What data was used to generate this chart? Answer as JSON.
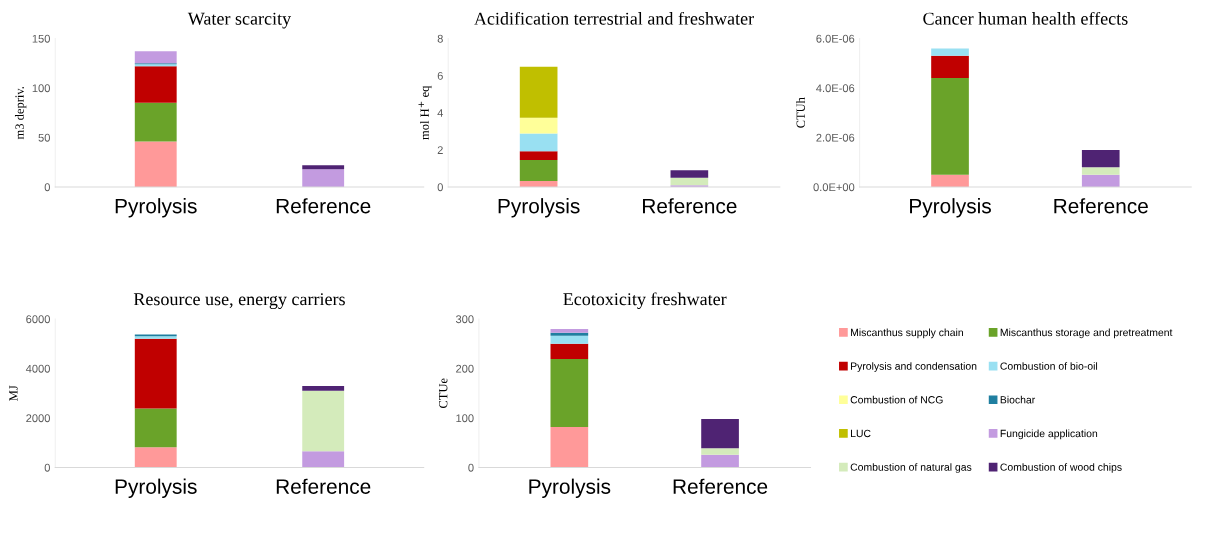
{
  "chart_data": [
    {
      "type": "bar",
      "stacked": true,
      "title": "Water scarcity",
      "ylabel": "m3 depriv.",
      "categories": [
        "Pyrolysis",
        "Reference"
      ],
      "ylim": [
        0,
        150
      ],
      "yticks": [
        0,
        50,
        100,
        150
      ],
      "series": [
        {
          "color": "#ff9999",
          "values": [
            46,
            null
          ]
        },
        {
          "color": "#6aa329",
          "values": [
            39,
            null
          ]
        },
        {
          "color": "#c00000",
          "values": [
            37,
            null
          ]
        },
        {
          "color": "#99e0f2",
          "values": [
            2,
            null
          ]
        },
        {
          "color": "#1f7fa0",
          "values": [
            1,
            null
          ]
        },
        {
          "color": "#c39be0",
          "values": [
            12,
            18
          ]
        },
        {
          "color": "#4f2373",
          "values": [
            null,
            4
          ]
        }
      ]
    },
    {
      "type": "bar",
      "stacked": true,
      "title": "Acidification terrestrial and freshwater",
      "ylabel": "mol H$^{+}$ eq",
      "categories": [
        "Pyrolysis",
        "Reference"
      ],
      "ylim": [
        0,
        8
      ],
      "yticks": [
        0,
        2,
        4,
        6,
        8
      ],
      "series": [
        {
          "color": "#ff9999",
          "values": [
            0.32,
            null
          ]
        },
        {
          "color": "#6aa329",
          "values": [
            1.14,
            null
          ]
        },
        {
          "color": "#c00000",
          "values": [
            0.47,
            null
          ]
        },
        {
          "color": "#99e0f2",
          "values": [
            0.95,
            null
          ]
        },
        {
          "color": "#ffff99",
          "values": [
            0.85,
            null
          ]
        },
        {
          "color": "#c0bf00",
          "values": [
            2.75,
            null
          ]
        },
        {
          "color": "#c39be0",
          "values": [
            null,
            0.1
          ]
        },
        {
          "color": "#d4ebbb",
          "values": [
            null,
            0.4
          ]
        },
        {
          "color": "#4f2373",
          "values": [
            null,
            0.4
          ]
        }
      ]
    },
    {
      "type": "bar",
      "stacked": true,
      "title": "Cancer human health effects",
      "ylabel": "CTUh",
      "categories": [
        "Pyrolysis",
        "Reference"
      ],
      "ylim": [
        0,
        6e-06
      ],
      "yticks": [
        {
          "value": 0,
          "label": "0.0E+00"
        },
        {
          "value": 2e-06,
          "label": "2.0E-06"
        },
        {
          "value": 4e-06,
          "label": "4.0E-06"
        },
        {
          "value": 6e-06,
          "label": "6.0E-06"
        }
      ],
      "series": [
        {
          "color": "#ff9999",
          "values": [
            5e-07,
            null
          ]
        },
        {
          "color": "#6aa329",
          "values": [
            3.9e-06,
            null
          ]
        },
        {
          "color": "#c00000",
          "values": [
            9e-07,
            null
          ]
        },
        {
          "color": "#99e0f2",
          "values": [
            3e-07,
            null
          ]
        },
        {
          "color": "#c39be0",
          "values": [
            null,
            5e-07
          ]
        },
        {
          "color": "#d4ebbb",
          "values": [
            null,
            3e-07
          ]
        },
        {
          "color": "#4f2373",
          "values": [
            null,
            7e-07
          ]
        }
      ]
    },
    {
      "type": "bar",
      "stacked": true,
      "title": "Resource use, energy carriers",
      "ylabel": "MJ",
      "categories": [
        "Pyrolysis",
        "Reference"
      ],
      "ylim": [
        0,
        6000
      ],
      "yticks": [
        0,
        2000,
        4000,
        6000
      ],
      "series": [
        {
          "color": "#ff9999",
          "values": [
            820,
            null
          ]
        },
        {
          "color": "#6aa329",
          "values": [
            1560,
            null
          ]
        },
        {
          "color": "#c00000",
          "values": [
            2820,
            null
          ]
        },
        {
          "color": "#99e0f2",
          "values": [
            100,
            null
          ]
        },
        {
          "color": "#1f7fa0",
          "values": [
            70,
            null
          ]
        },
        {
          "color": "#c39be0",
          "values": [
            null,
            660
          ]
        },
        {
          "color": "#d4ebbb",
          "values": [
            null,
            2440
          ]
        },
        {
          "color": "#4f2373",
          "values": [
            null,
            190
          ]
        }
      ]
    },
    {
      "type": "bar",
      "stacked": true,
      "title": "Ecotoxicity freshwater",
      "ylabel": "CTUe",
      "categories": [
        "Pyrolysis",
        "Reference"
      ],
      "ylim": [
        0,
        300
      ],
      "yticks": [
        0,
        100,
        200,
        300
      ],
      "legend": "right",
      "series": [
        {
          "name": "Miscanthus supply chain",
          "color": "#ff9999",
          "values": [
            82,
            null
          ]
        },
        {
          "name": "Miscanthus storage and pretreatment",
          "color": "#6aa329",
          "values": [
            137,
            null
          ]
        },
        {
          "name": "Pyrolysis and condensation",
          "color": "#c00000",
          "values": [
            31,
            null
          ]
        },
        {
          "name": "Combustion of bio-oil",
          "color": "#99e0f2",
          "values": [
            16,
            null
          ]
        },
        {
          "name": "Combustion of NCG",
          "color": "#ffff99",
          "values": [
            null,
            null
          ]
        },
        {
          "name": "Biochar",
          "color": "#1f7fa0",
          "values": [
            6,
            null
          ]
        },
        {
          "name": "LUC",
          "color": "#c0bf00",
          "values": [
            null,
            null
          ]
        },
        {
          "name": "Fungicide application",
          "color": "#c39be0",
          "values": [
            8,
            26
          ]
        },
        {
          "name": "Combustion of natural gas",
          "color": "#d4ebbb",
          "values": [
            null,
            13
          ]
        },
        {
          "name": "Combustion of wood chips",
          "color": "#4f2373",
          "values": [
            null,
            59
          ]
        }
      ]
    }
  ]
}
